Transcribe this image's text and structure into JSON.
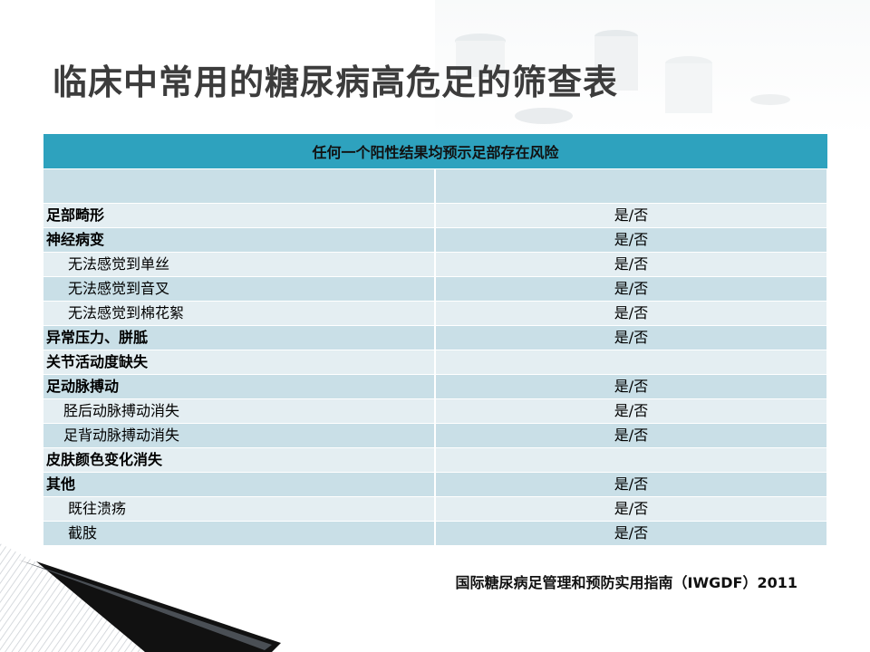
{
  "slide": {
    "title": "临床中常用的糖尿病高危足的筛查表",
    "source": "国际糖尿病足管理和预防实用指南（IWGDF）2011"
  },
  "table": {
    "header": "任何一个阳性结果均预示足部存在风险",
    "rows": [
      {
        "label": "足部畸形",
        "value": "是/否"
      },
      {
        "label": "神经病变",
        "value": "是/否"
      },
      {
        "label": "无法感觉到单丝",
        "value": "是/否"
      },
      {
        "label": "无法感觉到音叉",
        "value": "是/否"
      },
      {
        "label": "无法感觉到棉花絮",
        "value": "是/否"
      },
      {
        "label": "异常压力、胼胝",
        "value": "是/否"
      },
      {
        "label": "关节活动度缺失",
        "value": ""
      },
      {
        "label": "足动脉搏动",
        "value": "是/否"
      },
      {
        "label": "胫后动脉搏动消失",
        "value": "是/否"
      },
      {
        "label": "足背动脉搏动消失",
        "value": "是/否"
      },
      {
        "label": "皮肤颜色变化消失",
        "value": ""
      },
      {
        "label": "其他",
        "value": "是/否"
      },
      {
        "label": "既往溃疡",
        "value": "是/否"
      },
      {
        "label": "截肢",
        "value": "是/否"
      }
    ]
  },
  "colors": {
    "header_bg": "#2ea2be",
    "row_dark": "#c9dfe7",
    "row_light": "#e4eef2",
    "title_text": "#3c3c3c"
  }
}
